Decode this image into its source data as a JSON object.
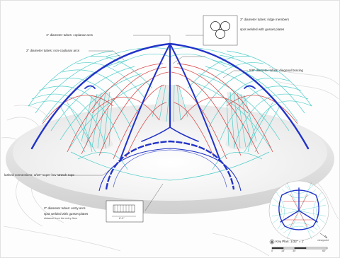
{
  "annotations": {
    "ridge_members": "2\" diameter tubes: ridge members",
    "spot_welded_top": "spot welded with gusset plates",
    "coplanar_arcs": "1\" diameter tubes: coplanar arcs",
    "noncoplanar_arcs": "2\" diameter tubes: non-coplanar arcs",
    "diagonal_bracing": "5/8\" diameter tubes: diagonal bracing",
    "lashed_connections": "lashed connections: 3/16\" super low stretch rope",
    "entry_arcs": "2\" diameter tubes: entry arcs",
    "spot_welded_bottom": "spot welded with gusset plates",
    "entry_note": "distance from the entry floor",
    "entry_dim": "8'-0\""
  },
  "key_plan": {
    "viewpoint": "viewpoint",
    "title": "Key Plan: 1/32\" = 1'",
    "scale_ticks": [
      "0'",
      "15'",
      "30'",
      "60'"
    ]
  },
  "colors": {
    "cyan": "#3fc9c4",
    "red": "#d8393b",
    "blue": "#2233c8",
    "leader": "#555555",
    "terrain": "#e4e4e4"
  }
}
